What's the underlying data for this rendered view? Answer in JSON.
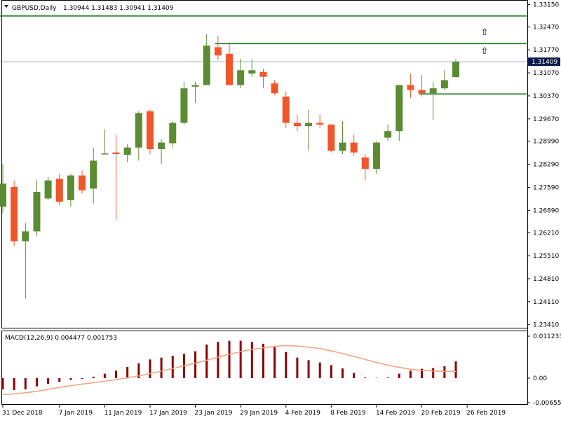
{
  "chart_data": {
    "type": "candlestick",
    "header": {
      "symbol_label": "GBPUSD,Daily",
      "ohlc_text": "1.30944 1.31483 1.30941 1.31409"
    },
    "price_axis": {
      "range": [
        1.2334,
        1.3318
      ],
      "ticks": [
        "1.33150",
        "1.32470",
        "1.31770",
        "1.31070",
        "1.30370",
        "1.29670",
        "1.28990",
        "1.28290",
        "1.27590",
        "1.26890",
        "1.26210",
        "1.25510",
        "1.24810",
        "1.24110",
        "1.23410"
      ],
      "current_price_label": "1.31409",
      "current_price": 1.31409
    },
    "colors": {
      "bull": "#5b8c32",
      "bear": "#f0562a",
      "level_line": "#1b7b1b",
      "macd_hist": "#8b0000",
      "macd_signal": "#f4a07a",
      "price_tag_bg": "#0a1a4a"
    },
    "candles": [
      {
        "o": 1.27,
        "h": 1.283,
        "l": 1.268,
        "c": 1.277
      },
      {
        "o": 1.276,
        "h": 1.278,
        "l": 1.258,
        "c": 1.2595
      },
      {
        "o": 1.2595,
        "h": 1.265,
        "l": 1.242,
        "c": 1.2625
      },
      {
        "o": 1.2625,
        "h": 1.278,
        "l": 1.261,
        "c": 1.2745
      },
      {
        "o": 1.2725,
        "h": 1.279,
        "l": 1.272,
        "c": 1.278
      },
      {
        "o": 1.2785,
        "h": 1.28,
        "l": 1.2705,
        "c": 1.2715
      },
      {
        "o": 1.272,
        "h": 1.28,
        "l": 1.27,
        "c": 1.2795
      },
      {
        "o": 1.2795,
        "h": 1.281,
        "l": 1.274,
        "c": 1.275
      },
      {
        "o": 1.2755,
        "h": 1.288,
        "l": 1.271,
        "c": 1.284
      },
      {
        "o": 1.286,
        "h": 1.2935,
        "l": 1.286,
        "c": 1.2862
      },
      {
        "o": 1.2865,
        "h": 1.292,
        "l": 1.266,
        "c": 1.286
      },
      {
        "o": 1.2858,
        "h": 1.289,
        "l": 1.2835,
        "c": 1.288
      },
      {
        "o": 1.288,
        "h": 1.299,
        "l": 1.284,
        "c": 1.2985
      },
      {
        "o": 1.299,
        "h": 1.2995,
        "l": 1.286,
        "c": 1.2875
      },
      {
        "o": 1.2875,
        "h": 1.2905,
        "l": 1.283,
        "c": 1.2895
      },
      {
        "o": 1.2893,
        "h": 1.296,
        "l": 1.288,
        "c": 1.2955
      },
      {
        "o": 1.2955,
        "h": 1.308,
        "l": 1.295,
        "c": 1.306
      },
      {
        "o": 1.3065,
        "h": 1.308,
        "l": 1.3015,
        "c": 1.307
      },
      {
        "o": 1.307,
        "h": 1.3225,
        "l": 1.307,
        "c": 1.319
      },
      {
        "o": 1.3185,
        "h": 1.322,
        "l": 1.3145,
        "c": 1.316
      },
      {
        "o": 1.3165,
        "h": 1.32,
        "l": 1.307,
        "c": 1.307
      },
      {
        "o": 1.307,
        "h": 1.315,
        "l": 1.306,
        "c": 1.3115
      },
      {
        "o": 1.3105,
        "h": 1.315,
        "l": 1.3095,
        "c": 1.3115
      },
      {
        "o": 1.311,
        "h": 1.312,
        "l": 1.306,
        "c": 1.3095
      },
      {
        "o": 1.3075,
        "h": 1.3085,
        "l": 1.304,
        "c": 1.3045
      },
      {
        "o": 1.3035,
        "h": 1.305,
        "l": 1.294,
        "c": 1.2955
      },
      {
        "o": 1.2955,
        "h": 1.298,
        "l": 1.293,
        "c": 1.2945
      },
      {
        "o": 1.2945,
        "h": 1.2995,
        "l": 1.287,
        "c": 1.2955
      },
      {
        "o": 1.2955,
        "h": 1.298,
        "l": 1.294,
        "c": 1.295
      },
      {
        "o": 1.295,
        "h": 1.295,
        "l": 1.2865,
        "c": 1.287
      },
      {
        "o": 1.287,
        "h": 1.296,
        "l": 1.286,
        "c": 1.2895
      },
      {
        "o": 1.2895,
        "h": 1.292,
        "l": 1.2855,
        "c": 1.2865
      },
      {
        "o": 1.285,
        "h": 1.286,
        "l": 1.278,
        "c": 1.2815
      },
      {
        "o": 1.2815,
        "h": 1.29,
        "l": 1.28,
        "c": 1.2895
      },
      {
        "o": 1.291,
        "h": 1.295,
        "l": 1.29,
        "c": 1.293
      },
      {
        "o": 1.293,
        "h": 1.307,
        "l": 1.29,
        "c": 1.307
      },
      {
        "o": 1.307,
        "h": 1.3105,
        "l": 1.303,
        "c": 1.3055
      },
      {
        "o": 1.3055,
        "h": 1.31,
        "l": 1.3035,
        "c": 1.3045
      },
      {
        "o": 1.3045,
        "h": 1.308,
        "l": 1.2965,
        "c": 1.306
      },
      {
        "o": 1.306,
        "h": 1.3115,
        "l": 1.3055,
        "c": 1.3085
      },
      {
        "o": 1.3094,
        "h": 1.3148,
        "l": 1.3094,
        "c": 1.3141
      }
    ],
    "levels": [
      {
        "price": 1.328,
        "start_index": 0
      },
      {
        "price": 1.3196,
        "start_index": 19
      },
      {
        "price": 1.3043,
        "start_index": 37
      }
    ],
    "arrows": [
      {
        "price": 1.3233,
        "marker": "⇧"
      },
      {
        "price": 1.3175,
        "marker": "⇧"
      }
    ],
    "macd": {
      "label": "MACD(12,26,9) 0.004477 0.001753",
      "range": [
        -0.006556,
        0.011233
      ],
      "ticks": [
        "0.011233",
        "0.00",
        "-0.006556"
      ],
      "histogram": [
        -0.003,
        -0.0032,
        -0.003,
        -0.0022,
        -0.0015,
        -0.001,
        -0.0005,
        -0.0002,
        0.0004,
        0.0012,
        0.002,
        0.003,
        0.004,
        0.005,
        0.0055,
        0.006,
        0.0065,
        0.0072,
        0.009,
        0.0097,
        0.01,
        0.01,
        0.0097,
        0.0092,
        0.0083,
        0.007,
        0.0055,
        0.0048,
        0.0042,
        0.0035,
        0.0026,
        0.0014,
        0.0002,
        0.0001,
        0.0002,
        0.0012,
        0.002,
        0.0025,
        0.0027,
        0.0032,
        0.0045
      ],
      "signal": [
        -0.0044,
        -0.0042,
        -0.0039,
        -0.0035,
        -0.003,
        -0.0025,
        -0.002,
        -0.0016,
        -0.0012,
        -0.0008,
        -0.0004,
        0.0001,
        0.0006,
        0.0012,
        0.0019,
        0.0026,
        0.0033,
        0.004,
        0.0048,
        0.0056,
        0.0064,
        0.0071,
        0.0077,
        0.0081,
        0.0085,
        0.0087,
        0.0086,
        0.0083,
        0.0079,
        0.0073,
        0.0066,
        0.0058,
        0.005,
        0.0042,
        0.0035,
        0.0029,
        0.0024,
        0.0021,
        0.0019,
        0.0018,
        0.0018
      ]
    },
    "x_labels": [
      {
        "text": "31 Dec 2018",
        "index": 0
      },
      {
        "text": "7 Jan 2019",
        "index": 5
      },
      {
        "text": "11 Jan 2019",
        "index": 9
      },
      {
        "text": "17 Jan 2019",
        "index": 13
      },
      {
        "text": "23 Jan 2019",
        "index": 17
      },
      {
        "text": "29 Jan 2019",
        "index": 21
      },
      {
        "text": "4 Feb 2019",
        "index": 25
      },
      {
        "text": "8 Feb 2019",
        "index": 29
      },
      {
        "text": "14 Feb 2019",
        "index": 33
      },
      {
        "text": "20 Feb 2019",
        "index": 37
      },
      {
        "text": "26 Feb 2019",
        "index": 41
      }
    ]
  }
}
